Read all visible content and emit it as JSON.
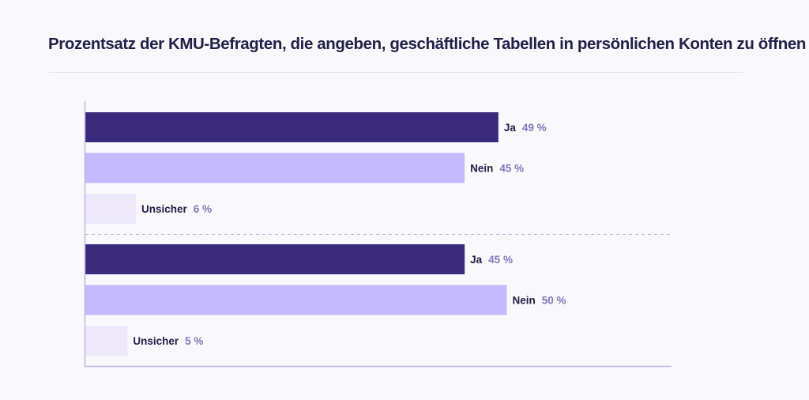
{
  "title": "Prozentsatz der KMU-Befragten, die angeben, geschäftliche Tabellen in persönlichen Konten zu öffnen",
  "colors": {
    "ja": "#3a2a7c",
    "nein": "#c5bafc",
    "unsicher": "#ede9fb",
    "axis": "#bcb6e6",
    "divider": "#b6b0e0"
  },
  "chart_data": {
    "type": "bar",
    "orientation": "horizontal",
    "title": "Prozentsatz der KMU-Befragten, die angeben, geschäftliche Tabellen in persönlichen Konten zu öffnen",
    "xlim": [
      0,
      100
    ],
    "unit": "%",
    "categories": [
      "Ja",
      "Nein",
      "Unsicher"
    ],
    "groups": [
      {
        "bars": [
          {
            "label": "Ja",
            "value": 49,
            "value_label": "49 %"
          },
          {
            "label": "Nein",
            "value": 45,
            "value_label": "45 %"
          },
          {
            "label": "Unsicher",
            "value": 6,
            "value_label": "6 %"
          }
        ]
      },
      {
        "bars": [
          {
            "label": "Ja",
            "value": 45,
            "value_label": "45 %"
          },
          {
            "label": "Nein",
            "value": 50,
            "value_label": "50 %"
          },
          {
            "label": "Unsicher",
            "value": 5,
            "value_label": "5 %"
          }
        ]
      }
    ]
  }
}
